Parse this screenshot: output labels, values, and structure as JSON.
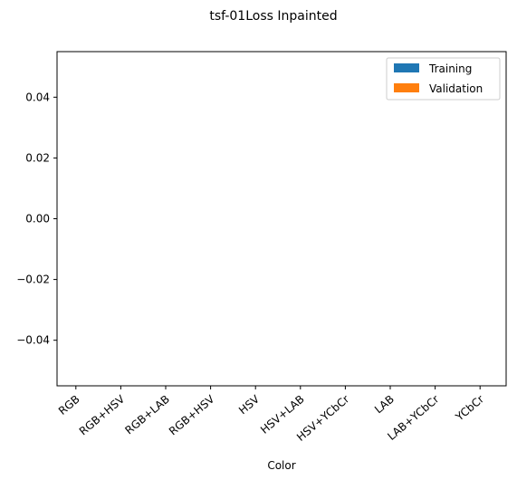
{
  "chart_data": {
    "type": "bar",
    "title": "tsf-01Loss Inpainted",
    "xlabel": "Color",
    "ylabel": "",
    "categories": [
      "RGB",
      "RGB+HSV",
      "RGB+LAB",
      "RGB+HSV",
      "HSV",
      "HSV+LAB",
      "HSV+YCbCr",
      "LAB",
      "LAB+YCbCr",
      "YCbCr"
    ],
    "series": [
      {
        "name": "Training",
        "color": "#1f77b4",
        "values": [
          0,
          0,
          0,
          0,
          0,
          0,
          0,
          0,
          0,
          0
        ]
      },
      {
        "name": "Validation",
        "color": "#ff7f0e",
        "values": [
          0,
          0,
          0,
          0,
          0,
          0,
          0,
          0,
          0,
          0
        ]
      }
    ],
    "ylim": [
      -0.055,
      0.055
    ],
    "yticks": [
      "0.04",
      "0.02",
      "0.00",
      "−0.02",
      "−0.04"
    ],
    "ytick_values": [
      0.04,
      0.02,
      0.0,
      -0.02,
      -0.04
    ],
    "grid": false,
    "legend_position": "top-right"
  }
}
